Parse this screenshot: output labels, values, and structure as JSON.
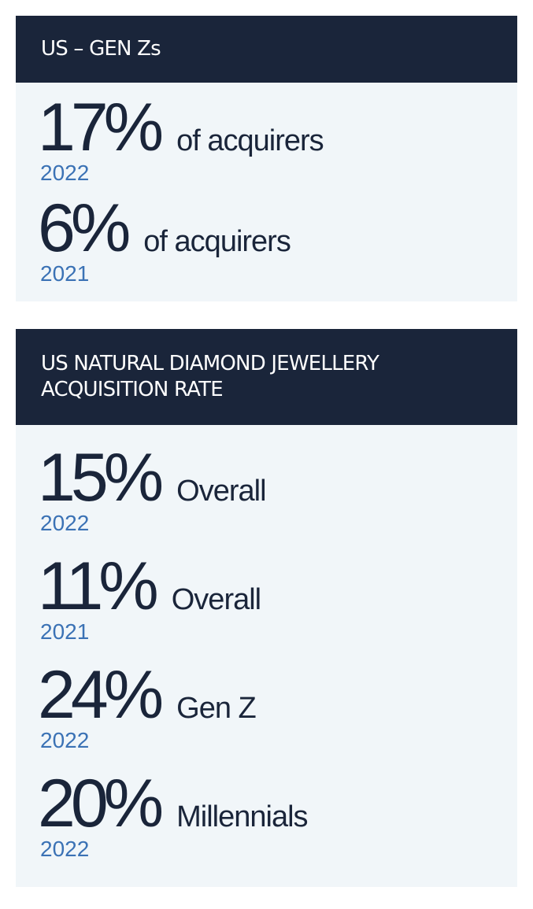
{
  "panels": [
    {
      "title": "US – GEN Zs",
      "stats": [
        {
          "value": "17%",
          "label": "of acquirers",
          "year": "2022"
        },
        {
          "value": "6%",
          "label": "of acquirers",
          "year": "2021"
        }
      ]
    },
    {
      "title": "US NATURAL DIAMOND JEWELLERY ACQUISITION RATE",
      "stats": [
        {
          "value": "15%",
          "label": "Overall",
          "year": "2022"
        },
        {
          "value": "11%",
          "label": "Overall",
          "year": "2021"
        },
        {
          "value": "24%",
          "label": "Gen Z",
          "year": "2022"
        },
        {
          "value": "20%",
          "label": "Millennials",
          "year": "2022"
        }
      ]
    }
  ]
}
